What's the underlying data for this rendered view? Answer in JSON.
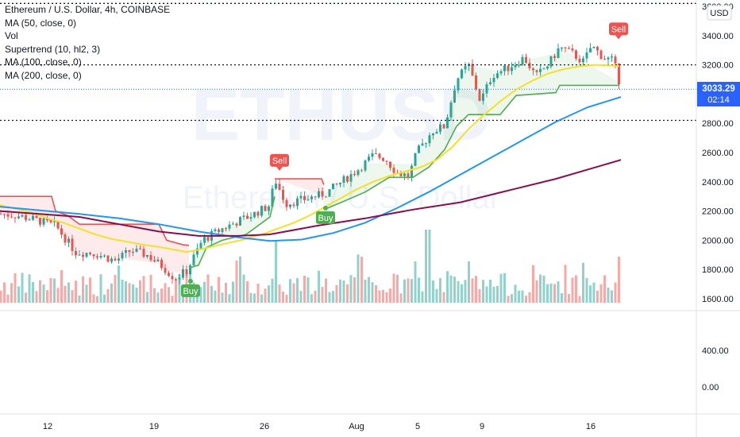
{
  "legend": {
    "title": "Ethereum / U.S. Dollar, 4h, COINBASE",
    "indicators": [
      "MA (50, close, 0)",
      "Vol",
      "Supertrend (10, hl2, 3)",
      "MA (100, close, 0)",
      "MA (200, close, 0)"
    ]
  },
  "watermark": {
    "symbol": "ETHUSD",
    "name": "Ethereum / U.S. Dollar"
  },
  "price_axis": {
    "currency": "USD",
    "ticks": [
      "3600.00",
      "3400.00",
      "3200.00",
      "2800.00",
      "2600.00",
      "2400.00",
      "2200.00",
      "2000.00",
      "1800.00",
      "1600.00"
    ],
    "last_price": "3033.29",
    "countdown": "02:14"
  },
  "indicator_axis": {
    "ticks": [
      "400.00",
      "0.00"
    ]
  },
  "time_axis": {
    "ticks": [
      "12",
      "19",
      "26",
      "Aug",
      "5",
      "9",
      "16"
    ]
  },
  "signals": [
    "Buy",
    "Sell",
    "Buy",
    "Sell"
  ],
  "colors": {
    "up": "#26a69a",
    "down": "#ef5350",
    "ma50": "#f5e12a",
    "ma100": "#2196f3",
    "ma200": "#880e4f",
    "supertrend_up": "#4caf50",
    "supertrend_down": "#ef5350",
    "last_price": "#2962ff"
  },
  "chart_data": {
    "type": "candlestick",
    "symbol": "ETHUSD",
    "interval": "4h",
    "ylim": [
      1600,
      3650
    ],
    "grid": false,
    "horizontal_levels": [
      3620,
      3200,
      2820
    ],
    "series": [
      {
        "name": "MA (50, close, 0)",
        "points": [
          [
            0,
            2240
          ],
          [
            20,
            2215
          ],
          [
            40,
            2190
          ],
          [
            60,
            2150
          ],
          [
            80,
            2120
          ],
          [
            100,
            2080
          ],
          [
            120,
            2040
          ],
          [
            140,
            2010
          ],
          [
            160,
            1990
          ],
          [
            180,
            1970
          ],
          [
            200,
            1955
          ],
          [
            220,
            1935
          ],
          [
            235,
            1920
          ],
          [
            250,
            1935
          ],
          [
            270,
            1960
          ],
          [
            290,
            1985
          ],
          [
            310,
            2010
          ],
          [
            330,
            2040
          ],
          [
            350,
            2080
          ],
          [
            370,
            2120
          ],
          [
            390,
            2170
          ],
          [
            410,
            2230
          ],
          [
            430,
            2290
          ],
          [
            450,
            2350
          ],
          [
            470,
            2400
          ],
          [
            490,
            2440
          ],
          [
            510,
            2470
          ],
          [
            530,
            2500
          ],
          [
            550,
            2550
          ],
          [
            570,
            2640
          ],
          [
            590,
            2760
          ],
          [
            610,
            2860
          ],
          [
            630,
            2950
          ],
          [
            650,
            3030
          ],
          [
            670,
            3090
          ],
          [
            690,
            3140
          ],
          [
            710,
            3170
          ],
          [
            730,
            3190
          ],
          [
            750,
            3200
          ],
          [
            770,
            3195
          ],
          [
            780,
            3190
          ]
        ]
      },
      {
        "name": "MA (100, close, 0)",
        "points": [
          [
            0,
            2230
          ],
          [
            50,
            2205
          ],
          [
            100,
            2180
          ],
          [
            150,
            2150
          ],
          [
            200,
            2110
          ],
          [
            250,
            2060
          ],
          [
            300,
            2020
          ],
          [
            340,
            1995
          ],
          [
            380,
            2005
          ],
          [
            420,
            2050
          ],
          [
            460,
            2120
          ],
          [
            500,
            2220
          ],
          [
            540,
            2330
          ],
          [
            580,
            2450
          ],
          [
            620,
            2570
          ],
          [
            660,
            2690
          ],
          [
            700,
            2810
          ],
          [
            740,
            2910
          ],
          [
            782,
            2980
          ]
        ]
      },
      {
        "name": "MA (200, close, 0)",
        "points": [
          [
            0,
            2200
          ],
          [
            100,
            2160
          ],
          [
            200,
            2060
          ],
          [
            250,
            2030
          ],
          [
            300,
            2030
          ],
          [
            340,
            2040
          ],
          [
            400,
            2100
          ],
          [
            460,
            2150
          ],
          [
            520,
            2210
          ],
          [
            580,
            2260
          ],
          [
            640,
            2340
          ],
          [
            700,
            2420
          ],
          [
            782,
            2550
          ]
        ]
      },
      {
        "name": "Supertrend (10, hl2, 3)",
        "segments": [
          {
            "trend": "down",
            "points": [
              [
                0,
                2300
              ],
              [
                65,
                2300
              ],
              [
                70,
                2200
              ],
              [
                85,
                2170
              ],
              [
                100,
                2110
              ],
              [
                200,
                2110
              ],
              [
                210,
                2000
              ],
              [
                230,
                1970
              ],
              [
                238,
                1965
              ]
            ]
          },
          {
            "trend": "up",
            "points": [
              [
                238,
                1810
              ],
              [
                250,
                1830
              ],
              [
                260,
                1950
              ],
              [
                280,
                2000
              ],
              [
                310,
                2040
              ],
              [
                340,
                2160
              ],
              [
                346,
                2300
              ]
            ]
          },
          {
            "trend": "down",
            "points": [
              [
                346,
                2420
              ],
              [
                405,
                2420
              ],
              [
                408,
                2380
              ]
            ]
          },
          {
            "trend": "up",
            "points": [
              [
                408,
                2210
              ],
              [
                430,
                2260
              ],
              [
                460,
                2330
              ],
              [
                490,
                2430
              ],
              [
                520,
                2430
              ],
              [
                540,
                2500
              ],
              [
                560,
                2620
              ],
              [
                575,
                2780
              ],
              [
                590,
                2860
              ],
              [
                630,
                2860
              ],
              [
                650,
                2990
              ],
              [
                700,
                3010
              ],
              [
                705,
                3060
              ],
              [
                780,
                3060
              ]
            ]
          }
        ]
      }
    ],
    "signals": [
      {
        "type": "Buy",
        "date": "Jul 21"
      },
      {
        "type": "Sell",
        "date": "Jul 26"
      },
      {
        "type": "Buy",
        "date": "Jul 28"
      },
      {
        "type": "Sell",
        "date": "Aug 17"
      }
    ],
    "last_close": 3033.29
  }
}
